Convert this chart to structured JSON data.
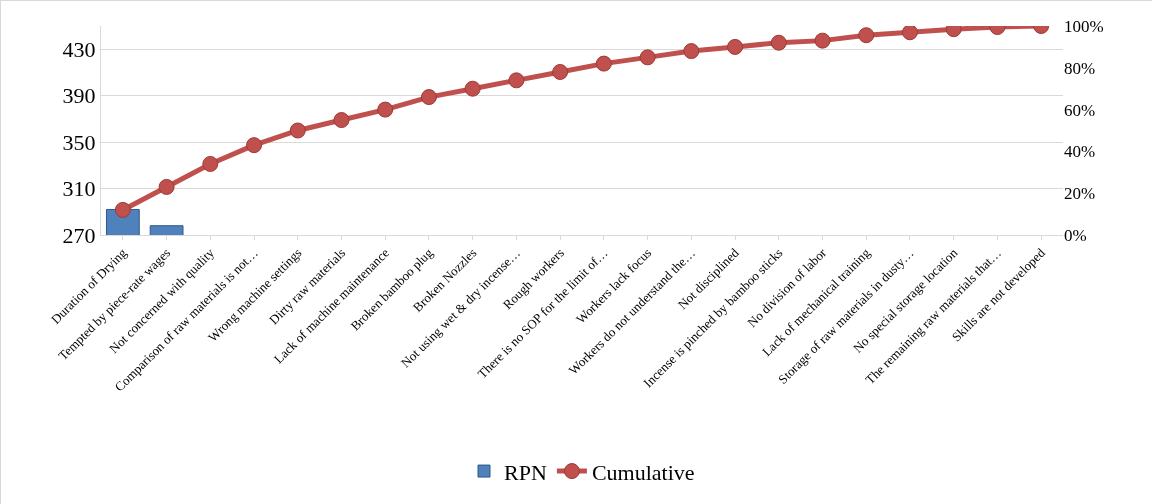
{
  "chart_data": {
    "type": "bar",
    "categories": [
      "Duration of Drying",
      "Tempted by piece-rate wages",
      "Not concerned with quality",
      "Comparison of raw materials is not…",
      "Wrong machine settings",
      "Dirty raw materials",
      "Lack of machine maintenance",
      "Broken bamboo plug",
      "Broken Nozzles",
      "Not using wet & dry incense…",
      "Rough workers",
      "There is no SOP for the limit of…",
      "Workers lack focus",
      "Workers do not understand the…",
      "Not disciplined",
      "Incense is pinched by bamboo sticks",
      "No division of labor",
      "Lack of mechanical training",
      "Storage of raw materials in dusty…",
      "No special storage location",
      "The remaining raw materials that…",
      "Skills are not developed"
    ],
    "series": [
      {
        "name": "RPN",
        "color": "#4f81bd",
        "values": [
          292,
          278,
          null,
          null,
          null,
          null,
          null,
          null,
          null,
          null,
          null,
          null,
          null,
          null,
          null,
          null,
          null,
          null,
          null,
          null,
          null,
          null
        ]
      },
      {
        "name": "Cumulative",
        "type": "line",
        "axis": "y2",
        "color": "#c0504d",
        "marker": "circle",
        "values": [
          12,
          23,
          34,
          43,
          50,
          55,
          60,
          66,
          70,
          74,
          78,
          82,
          85,
          88,
          90,
          92,
          93,
          95.6,
          97,
          98.5,
          99.5,
          100
        ]
      }
    ],
    "ylim": [
      270,
      450
    ],
    "yticks": [
      270,
      310,
      350,
      390,
      430
    ],
    "y2lim": [
      0,
      100
    ],
    "y2ticks": [
      {
        "value": 0,
        "label": "0%"
      },
      {
        "value": 20,
        "label": "20%"
      },
      {
        "value": 40,
        "label": "40%"
      },
      {
        "value": 60,
        "label": "60%"
      },
      {
        "value": 80,
        "label": "80%"
      },
      {
        "value": 100,
        "label": "100%"
      }
    ],
    "grid": "y",
    "legend": "bottom"
  }
}
